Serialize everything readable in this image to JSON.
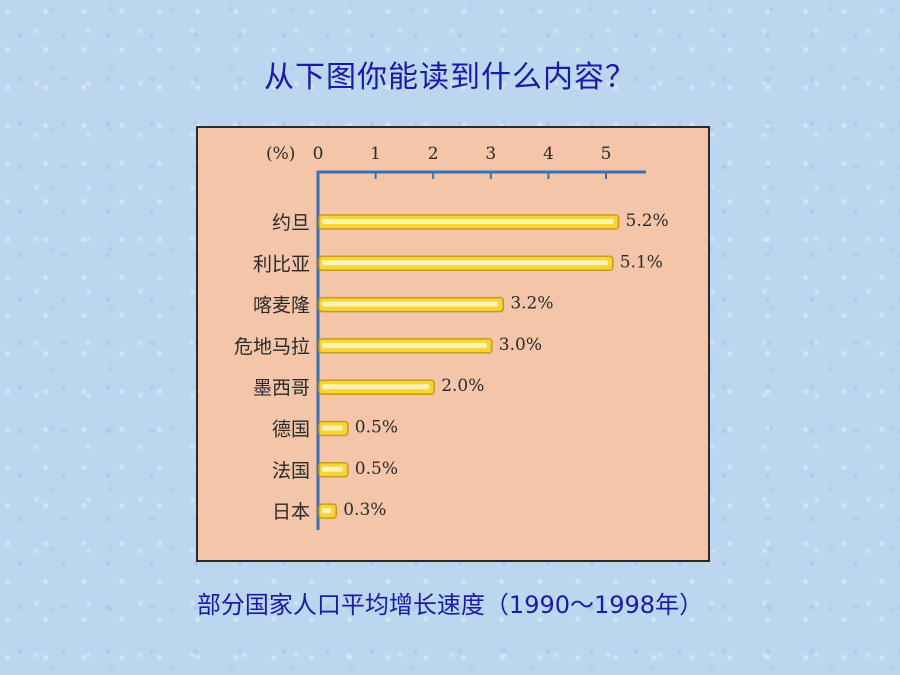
{
  "slide": {
    "title": "从下图你能读到什么内容？"
  },
  "chart_data": {
    "type": "bar",
    "orientation": "horizontal",
    "title": "",
    "caption": "部分国家人口平均增长速度（1990～1998年）",
    "unit_label": "(%)",
    "categories": [
      "约旦",
      "利比亚",
      "喀麦隆",
      "危地马拉",
      "墨西哥",
      "德国",
      "法国",
      "日本"
    ],
    "values": [
      5.2,
      5.1,
      3.2,
      3.0,
      2.0,
      0.5,
      0.5,
      0.3
    ],
    "data_labels": [
      "5.2%",
      "5.1%",
      "3.2%",
      "3.0%",
      "2.0%",
      "0.5%",
      "0.5%",
      "0.3%"
    ],
    "ticks": [
      "0",
      "1",
      "2",
      "3",
      "4",
      "5"
    ],
    "xlim": [
      0,
      5.5
    ],
    "axis_position": "top",
    "grid": false,
    "colors": {
      "bar_fill": "#f7d43a",
      "bar_edge": "#c99a18",
      "bar_highlight": "#fff3b0",
      "panel": "#f4c5a8",
      "axis": "#3b6fb5",
      "title_text": "#1a1aa8"
    }
  }
}
